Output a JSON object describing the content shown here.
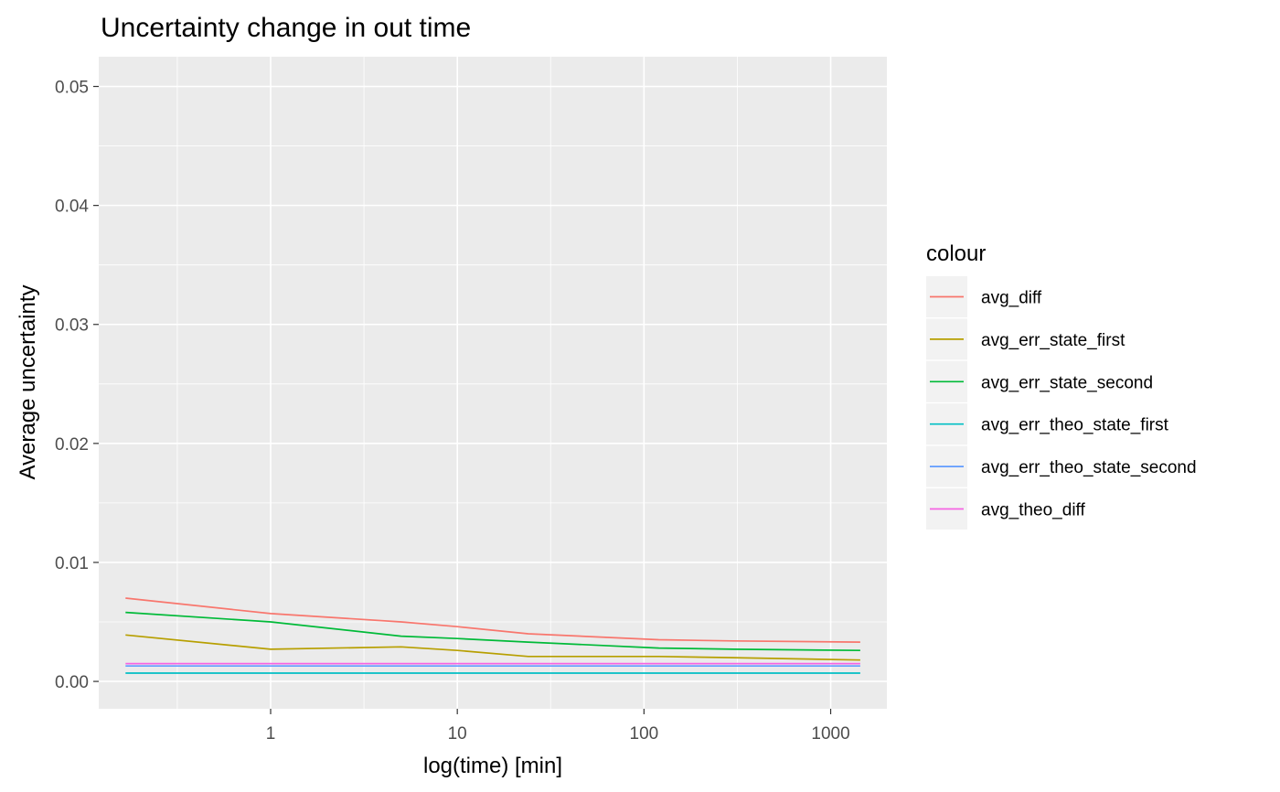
{
  "chart_data": {
    "type": "line",
    "title": "Uncertainty change in out time",
    "xlabel": "log(time) [min]",
    "ylabel": "Average uncertainty",
    "x_scale": "log10",
    "xlim": [
      0.12,
      2000
    ],
    "ylim": [
      -0.0023,
      0.0525
    ],
    "x_ticks": [
      1,
      10,
      100,
      1000
    ],
    "x_tick_labels": [
      "1",
      "10",
      "100",
      "1000"
    ],
    "y_ticks": [
      0,
      0.01,
      0.02,
      0.03,
      0.04,
      0.05
    ],
    "y_tick_labels": [
      "0.00",
      "0.01",
      "0.02",
      "0.03",
      "0.04",
      "0.05"
    ],
    "grid": true,
    "legend": {
      "title": "colour",
      "position": "right"
    },
    "x": [
      0.167,
      1,
      5,
      10,
      24,
      120,
      300,
      1440
    ],
    "series": [
      {
        "name": "avg_diff",
        "color": "#F8766D",
        "values": [
          0.007,
          0.0057,
          0.005,
          0.0046,
          0.004,
          0.0035,
          0.0034,
          0.0033
        ]
      },
      {
        "name": "avg_err_state_first",
        "color": "#B79F00",
        "values": [
          0.0039,
          0.0027,
          0.0029,
          0.0026,
          0.0021,
          0.0021,
          0.002,
          0.0018
        ]
      },
      {
        "name": "avg_err_state_second",
        "color": "#00BA38",
        "values": [
          0.0058,
          0.005,
          0.0038,
          0.0036,
          0.0033,
          0.0028,
          0.0027,
          0.0026
        ]
      },
      {
        "name": "avg_err_theo_state_first",
        "color": "#00BFC4",
        "values": [
          0.0007,
          0.0007,
          0.0007,
          0.0007,
          0.0007,
          0.0007,
          0.0007,
          0.0007
        ]
      },
      {
        "name": "avg_err_theo_state_second",
        "color": "#619CFF",
        "values": [
          0.0013,
          0.0013,
          0.0013,
          0.0013,
          0.0013,
          0.0013,
          0.0013,
          0.0013
        ]
      },
      {
        "name": "avg_theo_diff",
        "color": "#F564E3",
        "values": [
          0.0015,
          0.0015,
          0.0015,
          0.0015,
          0.0015,
          0.0015,
          0.0015,
          0.0015
        ]
      }
    ]
  }
}
